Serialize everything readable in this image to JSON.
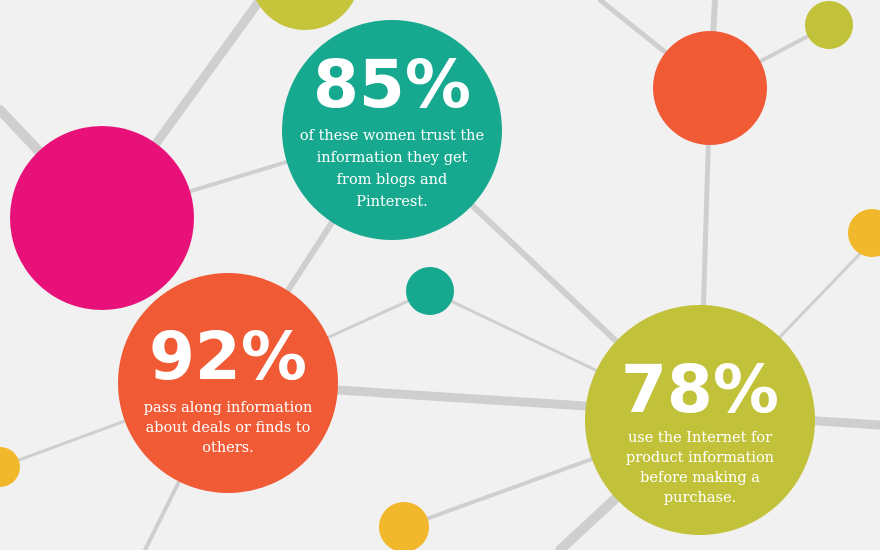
{
  "stats": [
    {
      "value": "85%",
      "lines": [
        "of these women trust the",
        "information they get",
        "from blogs and",
        "Pinterest."
      ]
    },
    {
      "value": "92%",
      "lines": [
        "pass along information",
        "about deals or finds to",
        "others."
      ]
    },
    {
      "value": "78%",
      "lines": [
        "use the Internet for",
        "product information",
        "before making a",
        "purchase."
      ]
    }
  ]
}
